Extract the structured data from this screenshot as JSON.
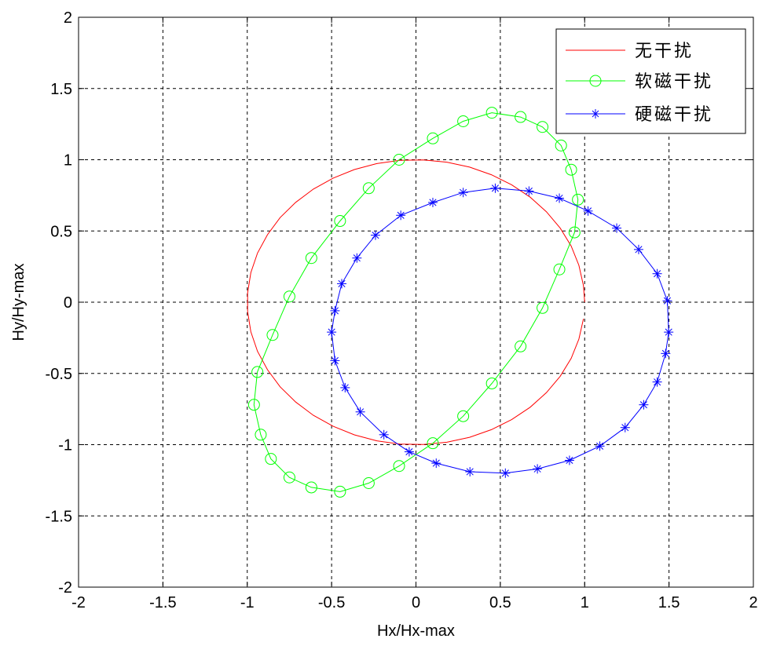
{
  "chart_data": {
    "type": "line",
    "title": "",
    "xlabel": "Hx/Hx-max",
    "ylabel": "Hy/Hy-max",
    "xlim": [
      -2,
      2
    ],
    "ylim": [
      -2,
      2
    ],
    "grid": true,
    "grid_style": "dashed",
    "legend_position": "top-right",
    "x_ticks": [
      "-2",
      "-1.5",
      "-1",
      "-0.5",
      "0",
      "0.5",
      "1",
      "1.5",
      "2"
    ],
    "y_ticks": [
      "-2",
      "-1.5",
      "-1",
      "-0.5",
      "0",
      "0.5",
      "1",
      "1.5",
      "2"
    ],
    "series": [
      {
        "name": "无干扰",
        "color": "#ff0000",
        "marker": "none",
        "x": [
          0.993,
          0.966,
          0.92,
          0.855,
          0.773,
          0.677,
          0.567,
          0.447,
          0.318,
          0.183,
          0.044,
          -0.095,
          -0.232,
          -0.365,
          -0.491,
          -0.608,
          -0.713,
          -0.805,
          -0.88,
          -0.939,
          -0.979,
          -0.998,
          -0.998,
          -0.979,
          -0.939,
          -0.88,
          -0.805,
          -0.713,
          -0.608,
          -0.491,
          -0.365,
          -0.232,
          -0.095,
          0.044,
          0.183,
          0.318,
          0.447,
          0.567,
          0.677,
          0.773,
          0.855,
          0.92,
          0.966,
          0.993,
          1.0
        ],
        "y": [
          -0.117,
          -0.259,
          -0.394,
          -0.52,
          -0.635,
          -0.737,
          -0.824,
          -0.895,
          -0.948,
          -0.983,
          -0.999,
          -0.996,
          -0.973,
          -0.931,
          -0.871,
          -0.794,
          -0.701,
          -0.594,
          -0.474,
          -0.345,
          -0.207,
          -0.065,
          0.065,
          0.207,
          0.345,
          0.474,
          0.594,
          0.701,
          0.794,
          0.871,
          0.931,
          0.973,
          0.996,
          0.999,
          0.983,
          0.948,
          0.895,
          0.824,
          0.737,
          0.635,
          0.52,
          0.394,
          0.259,
          0.117,
          0.0
        ]
      },
      {
        "name": "软磁干扰",
        "color": "#00ff00",
        "marker": "circle",
        "x": [
          0.1,
          0.28,
          0.45,
          0.62,
          0.75,
          0.85,
          0.94,
          0.96,
          0.92,
          0.86,
          0.75,
          0.62,
          0.45,
          0.28,
          0.1,
          -0.1,
          -0.28,
          -0.45,
          -0.62,
          -0.75,
          -0.85,
          -0.94,
          -0.96,
          -0.92,
          -0.86,
          -0.75,
          -0.62,
          -0.45,
          -0.28,
          -0.1,
          0.1
        ],
        "y": [
          -0.99,
          -0.8,
          -0.57,
          -0.31,
          -0.04,
          0.23,
          0.49,
          0.72,
          0.93,
          1.1,
          1.23,
          1.3,
          1.33,
          1.27,
          1.15,
          1.0,
          0.8,
          0.57,
          0.31,
          0.04,
          -0.23,
          -0.49,
          -0.72,
          -0.93,
          -1.1,
          -1.23,
          -1.3,
          -1.33,
          -1.27,
          -1.15,
          -0.99
        ]
      },
      {
        "name": "硬磁干扰",
        "color": "#0000ff",
        "marker": "star",
        "x": [
          1.498,
          1.48,
          1.43,
          1.35,
          1.24,
          1.09,
          0.91,
          0.72,
          0.53,
          0.32,
          0.12,
          -0.04,
          -0.19,
          -0.33,
          -0.42,
          -0.48,
          -0.5,
          -0.48,
          -0.44,
          -0.35,
          -0.24,
          -0.09,
          0.1,
          0.28,
          0.47,
          0.67,
          0.85,
          1.02,
          1.19,
          1.32,
          1.43,
          1.49,
          1.498
        ],
        "y": [
          -0.21,
          -0.36,
          -0.56,
          -0.72,
          -0.88,
          -1.01,
          -1.11,
          -1.17,
          -1.2,
          -1.19,
          -1.13,
          -1.05,
          -0.93,
          -0.77,
          -0.6,
          -0.41,
          -0.21,
          -0.06,
          0.13,
          0.31,
          0.47,
          0.61,
          0.7,
          0.77,
          0.8,
          0.78,
          0.73,
          0.64,
          0.52,
          0.37,
          0.2,
          0.01,
          -0.21
        ]
      }
    ]
  }
}
